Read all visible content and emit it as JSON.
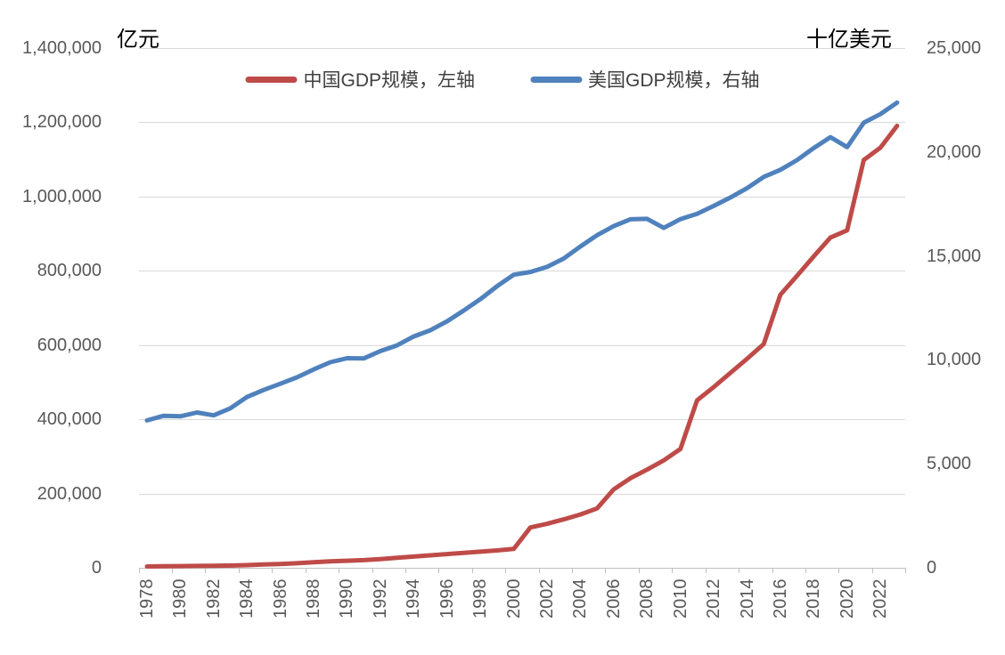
{
  "units": {
    "left": "亿元",
    "right": "十亿美元"
  },
  "colors": {
    "china_line": "#BE4B48",
    "us_line": "#4F81BD",
    "gridline": "#D9D9D9",
    "axis_line": "#BFBFBF",
    "tick_text": "#595959",
    "legend_text": "#404040"
  },
  "legend": [
    {
      "label": "中国GDP规模，左轴",
      "color": "#BE4B48"
    },
    {
      "label": "美国GDP规模，右轴",
      "color": "#4F81BD"
    }
  ],
  "chart_data": {
    "type": "line",
    "title": "",
    "xlabel": "",
    "left_axis": {
      "title": "亿元",
      "min": 0,
      "max": 1400000,
      "step": 200000,
      "tick_labels": [
        "1,400,000",
        "1,200,000",
        "1,000,000",
        "800,000",
        "600,000",
        "400,000",
        "200,000",
        "0"
      ]
    },
    "right_axis": {
      "title": "十亿美元",
      "min": 0,
      "max": 25000,
      "step": 5000,
      "tick_labels": [
        "25,000",
        "20,000",
        "15,000",
        "10,000",
        "5,000",
        "0"
      ]
    },
    "x": [
      1978,
      1979,
      1980,
      1981,
      1982,
      1983,
      1984,
      1985,
      1986,
      1987,
      1988,
      1989,
      1990,
      1991,
      1992,
      1993,
      1994,
      1995,
      1996,
      1997,
      1998,
      1999,
      2000,
      2001,
      2002,
      2003,
      2004,
      2005,
      2006,
      2007,
      2008,
      2009,
      2010,
      2011,
      2012,
      2013,
      2014,
      2015,
      2016,
      2017,
      2018,
      2019,
      2020,
      2021,
      2022,
      2023
    ],
    "x_tick_labels": [
      "1978",
      "1980",
      "1982",
      "1984",
      "1986",
      "1988",
      "1990",
      "1992",
      "1994",
      "1996",
      "1998",
      "2000",
      "2002",
      "2004",
      "2006",
      "2008",
      "2010",
      "2012",
      "2014",
      "2016",
      "2018",
      "2020",
      "2022"
    ],
    "grid": true,
    "legend_position": "top",
    "series": [
      {
        "name": "中国GDP规模，左轴",
        "axis": "left",
        "color": "#BE4B48",
        "values": [
          3679,
          4100,
          4588,
          4936,
          5373,
          6021,
          7279,
          9099,
          10376,
          12175,
          15180,
          17179,
          18873,
          20609,
          23536,
          26807,
          30292,
          33624,
          36953,
          40353,
          43500,
          46850,
          50832,
          108603,
          118486,
          130335,
          143499,
          159858,
          211108,
          241086,
          264471,
          289331,
          320000,
          451270,
          486920,
          524900,
          563218,
          602643,
          735700,
          786464,
          839157,
          889506,
          909075,
          1098707,
          1131668,
          1190514
        ]
      },
      {
        "name": "美国GDP规模，右轴",
        "axis": "right",
        "color": "#4F81BD",
        "values": [
          7088,
          7311,
          7288,
          7471,
          7335,
          7672,
          8215,
          8554,
          8852,
          9163,
          9544,
          9890,
          10080,
          10069,
          10424,
          10699,
          11124,
          11427,
          11853,
          12370,
          12924,
          13543,
          14096,
          14230,
          14473,
          14874,
          15452,
          15998,
          16433,
          16763,
          16785,
          16349,
          16772,
          17028,
          17404,
          17812,
          18262,
          18800,
          19142,
          19612,
          20194,
          20716,
          20234,
          21408,
          21822,
          22377
        ]
      }
    ]
  }
}
